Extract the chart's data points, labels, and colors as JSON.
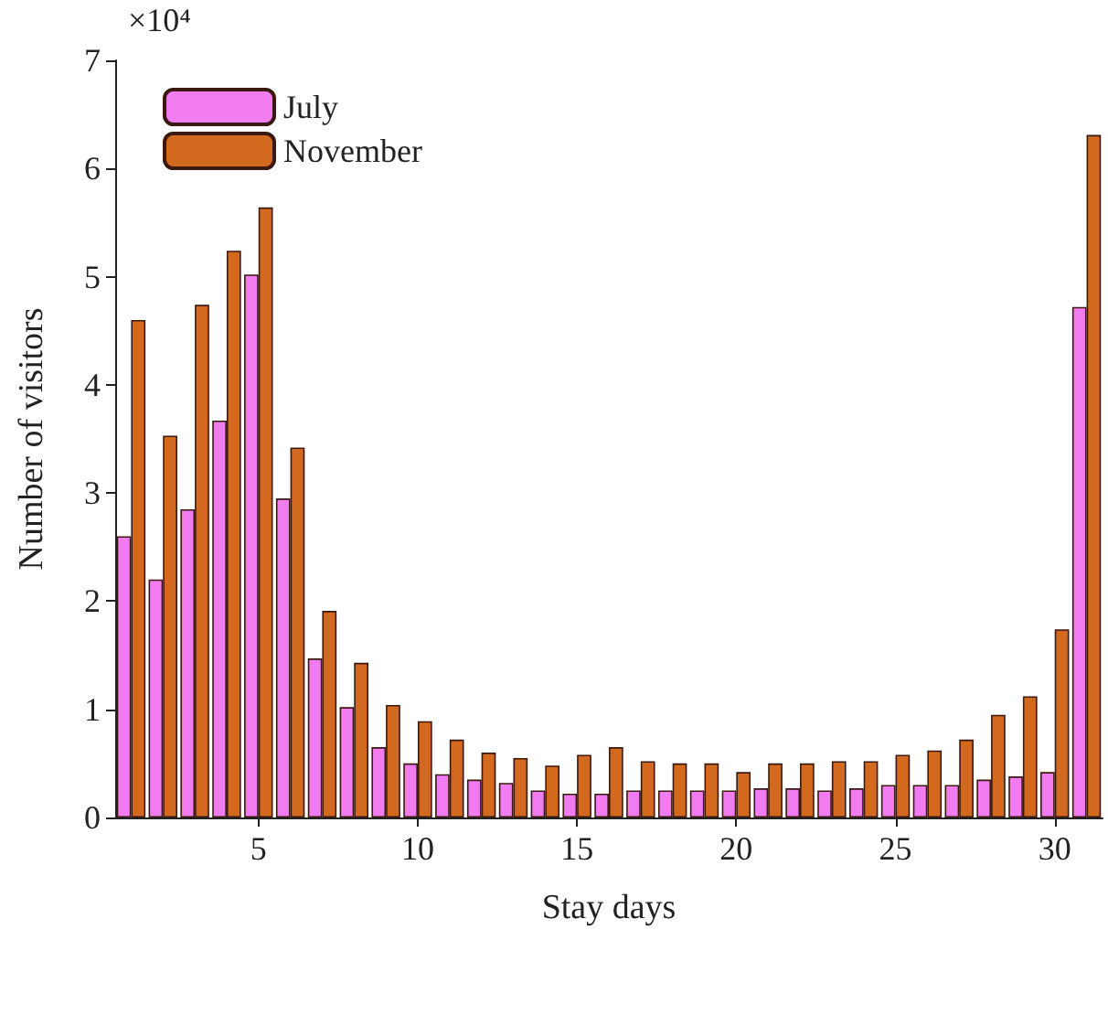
{
  "chart_data": {
    "type": "bar",
    "xlabel": "Stay days",
    "ylabel": "Number of visitors",
    "annotations": [
      "×10⁴"
    ],
    "x": [
      1,
      2,
      3,
      4,
      5,
      6,
      7,
      8,
      9,
      10,
      11,
      12,
      13,
      14,
      15,
      16,
      17,
      18,
      19,
      20,
      21,
      22,
      23,
      24,
      25,
      26,
      27,
      28,
      29,
      30,
      31
    ],
    "series": [
      {
        "name": "July",
        "color": "#f07cf0",
        "values": [
          2.6,
          2.2,
          2.85,
          3.67,
          5.02,
          2.95,
          1.47,
          1.02,
          0.65,
          0.5,
          0.4,
          0.35,
          0.32,
          0.25,
          0.22,
          0.22,
          0.25,
          0.25,
          0.25,
          0.25,
          0.27,
          0.27,
          0.25,
          0.27,
          0.3,
          0.3,
          0.3,
          0.35,
          0.38,
          0.42,
          4.72
        ]
      },
      {
        "name": "November",
        "color": "#d2691e",
        "values": [
          4.6,
          3.53,
          4.74,
          5.24,
          5.64,
          3.42,
          1.91,
          1.43,
          1.04,
          0.89,
          0.72,
          0.6,
          0.55,
          0.48,
          0.58,
          0.65,
          0.52,
          0.5,
          0.5,
          0.42,
          0.5,
          0.5,
          0.52,
          0.52,
          0.58,
          0.62,
          0.72,
          0.95,
          1.12,
          1.74,
          6.31
        ]
      }
    ],
    "xlim": [
      0.5,
      31.5
    ],
    "xticks": [
      5,
      10,
      15,
      20,
      25,
      30
    ],
    "ylim": [
      0,
      7
    ],
    "yticks": [
      0,
      1,
      2,
      3,
      4,
      5,
      6,
      7
    ],
    "grid": false,
    "legend": "top left"
  }
}
